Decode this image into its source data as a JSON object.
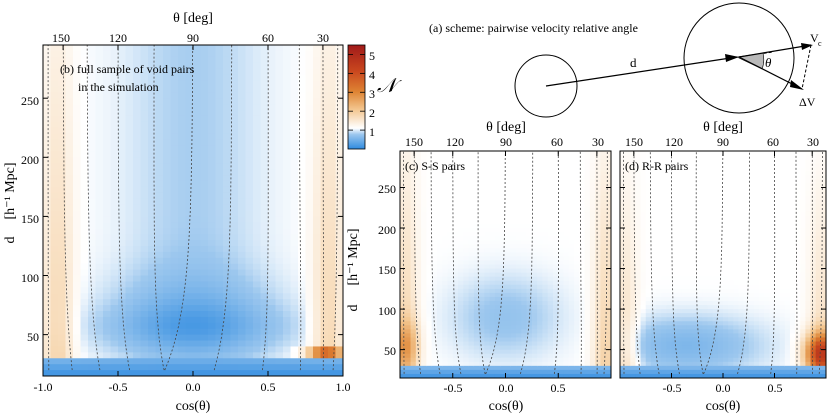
{
  "chart_data": [
    {
      "type": "heatmap",
      "panel_label_line1": "(b) full sample of void pairs",
      "panel_label_line2": "in the simulation",
      "x_axis": {
        "label": "cos(θ)",
        "range": [
          -1.0,
          1.0
        ],
        "ticks": [
          "-1.0",
          "-0.5",
          "0.0",
          "0.5",
          "1.0"
        ]
      },
      "y_axis": {
        "label_main": "d",
        "label_unit": "[h⁻¹ Mpc]",
        "range": [
          15,
          295
        ],
        "ticks": [
          "50",
          "100",
          "150",
          "200",
          "250"
        ]
      },
      "top_axis": {
        "label": "θ [deg]",
        "ticks": [
          "150",
          "120",
          "90",
          "60",
          "30"
        ]
      },
      "colorbar": {
        "label": "𝒩",
        "range": [
          0,
          5.5
        ],
        "ticks": [
          "1",
          "2",
          "3",
          "4",
          "5"
        ],
        "colors": {
          "low": "#2f8be0",
          "mid": "#ffffff",
          "high": "#a11a1a"
        }
      }
    },
    {
      "type": "heatmap",
      "panel_label": "(c) S-S pairs",
      "x_axis": {
        "label": "cos(θ)",
        "range": [
          -1.0,
          1.0
        ],
        "ticks": [
          "-0.5",
          "0.0",
          "0.5"
        ]
      },
      "y_axis": {
        "label_main": "d",
        "label_unit": "[h⁻¹ Mpc]",
        "range": [
          15,
          295
        ],
        "ticks": [
          "50",
          "100",
          "150",
          "200",
          "250"
        ]
      },
      "top_axis": {
        "label": "θ [deg]",
        "ticks": [
          "150",
          "120",
          "90",
          "60",
          "30"
        ]
      }
    },
    {
      "type": "heatmap",
      "panel_label": "(d) R-R pairs",
      "x_axis": {
        "label": "cos(θ)",
        "range": [
          -1.0,
          1.0
        ],
        "ticks": [
          "-0.5",
          "0.0",
          "0.5"
        ]
      },
      "top_axis": {
        "label": "θ [deg]",
        "ticks": [
          "150",
          "120",
          "90",
          "60",
          "30"
        ]
      }
    }
  ],
  "scheme": {
    "caption": "(a) scheme: pairwise velocity relative angle",
    "d_label": "d",
    "theta_label": "θ",
    "v_label": "V",
    "v_sub": "c",
    "dv_label": "ΔV"
  }
}
